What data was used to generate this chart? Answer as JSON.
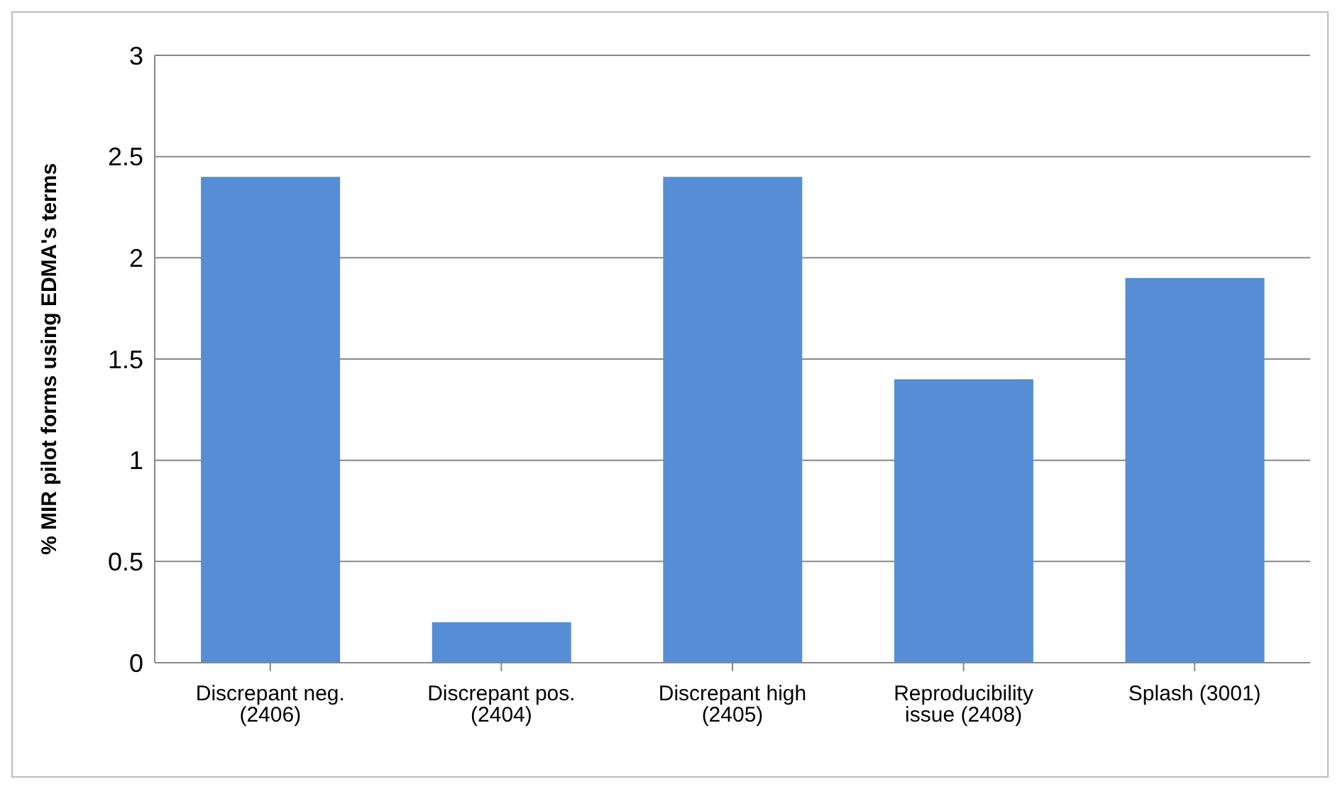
{
  "chart_data": {
    "type": "bar",
    "ylabel": "% MIR pilot forms using EDMA's terms",
    "categories": [
      "Discrepant neg. (2406)",
      "Discrepant pos. (2404)",
      "Discrepant high (2405)",
      "Reproducibility issue (2408)",
      "Splash (3001)"
    ],
    "values": [
      2.4,
      0.2,
      2.4,
      1.4,
      1.9
    ],
    "color": "#558ed5",
    "ylim": [
      0,
      3
    ],
    "yticks": [
      0,
      0.5,
      1,
      1.5,
      2,
      2.5,
      3
    ],
    "grid": "y",
    "legend": false
  }
}
